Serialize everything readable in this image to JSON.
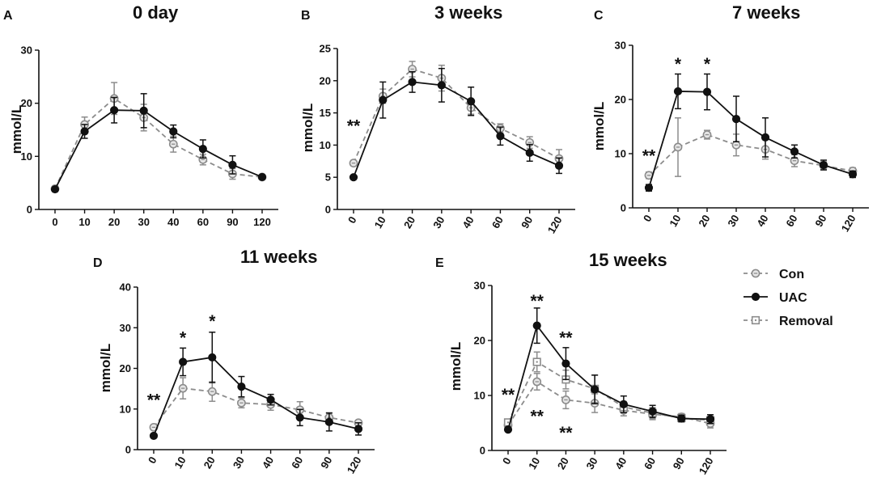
{
  "legend": [
    {
      "label": "Con",
      "color": "#8c8c8c",
      "marker": "circle-open",
      "dash": "dashed"
    },
    {
      "label": "UAC",
      "color": "#111111",
      "marker": "circle-filled",
      "dash": "solid"
    },
    {
      "label": "Removal",
      "color": "#8c8c8c",
      "marker": "square-open",
      "dash": "dashed"
    }
  ],
  "chart_data": [
    {
      "panel": "A",
      "title": "0 day",
      "type": "line",
      "ylabel": "mmol/L",
      "ylim": [
        0,
        30
      ],
      "yticks": [
        0,
        10,
        20,
        30
      ],
      "categories": [
        "0",
        "10",
        "20",
        "30",
        "40",
        "60",
        "90",
        "120"
      ],
      "x_tick_rotation": 0,
      "series": [
        {
          "name": "Con",
          "values": [
            3.9,
            16.0,
            20.9,
            17.3,
            12.3,
            9.4,
            6.7,
            6.1
          ],
          "errors": [
            0.5,
            1.4,
            3.0,
            2.5,
            1.5,
            1.0,
            1.0,
            0.3
          ]
        },
        {
          "name": "UAC",
          "values": [
            3.8,
            14.7,
            18.7,
            18.6,
            14.7,
            11.4,
            8.4,
            6.1
          ],
          "errors": [
            0.4,
            1.3,
            2.4,
            3.2,
            1.2,
            1.7,
            1.7,
            0.3
          ]
        }
      ],
      "annotations": []
    },
    {
      "panel": "B",
      "title": "3 weeks",
      "type": "line",
      "ylabel": "mmol/L",
      "ylim": [
        0,
        25
      ],
      "yticks": [
        0,
        5,
        10,
        15,
        20,
        25
      ],
      "categories": [
        "0",
        "10",
        "20",
        "30",
        "40",
        "60",
        "90",
        "120"
      ],
      "x_tick_rotation": -60,
      "series": [
        {
          "name": "Con",
          "values": [
            7.2,
            17.6,
            21.8,
            20.4,
            15.8,
            12.6,
            10.4,
            7.9
          ],
          "errors": [
            0.4,
            1.1,
            1.2,
            2.0,
            1.0,
            0.7,
            0.9,
            1.4
          ]
        },
        {
          "name": "UAC",
          "values": [
            5.0,
            17.0,
            19.8,
            19.3,
            16.8,
            11.4,
            8.8,
            6.8
          ],
          "errors": [
            0.3,
            2.8,
            1.6,
            2.6,
            2.2,
            1.4,
            1.3,
            1.2
          ]
        }
      ],
      "annotations": [
        {
          "category": "0",
          "y": 12.1,
          "text": "**"
        }
      ]
    },
    {
      "panel": "C",
      "title": "7 weeks",
      "type": "line",
      "ylabel": "mmol/L",
      "ylim": [
        0,
        30
      ],
      "yticks": [
        0,
        10,
        20,
        30
      ],
      "categories": [
        "0",
        "10",
        "20",
        "30",
        "40",
        "60",
        "90",
        "120"
      ],
      "x_tick_rotation": -60,
      "series": [
        {
          "name": "Con",
          "values": [
            6.0,
            11.2,
            13.5,
            11.6,
            10.8,
            8.7,
            7.8,
            6.8
          ],
          "errors": [
            0.6,
            5.4,
            0.8,
            2.0,
            1.8,
            1.1,
            0.7,
            0.6
          ]
        },
        {
          "name": "UAC",
          "values": [
            3.7,
            21.5,
            21.4,
            16.4,
            13.0,
            10.4,
            7.9,
            6.2
          ],
          "errors": [
            0.6,
            3.2,
            3.3,
            4.2,
            3.6,
            1.2,
            0.9,
            0.6
          ]
        }
      ],
      "annotations": [
        {
          "category": "0",
          "y": 8.6,
          "text": "**"
        },
        {
          "category": "10",
          "y": 25.5,
          "text": "*"
        },
        {
          "category": "20",
          "y": 25.5,
          "text": "*"
        }
      ]
    },
    {
      "panel": "D",
      "title": "11 weeks",
      "type": "line",
      "ylabel": "mmol/L",
      "ylim": [
        0,
        40
      ],
      "yticks": [
        0,
        10,
        20,
        30,
        40
      ],
      "categories": [
        "0",
        "10",
        "20",
        "30",
        "40",
        "60",
        "90",
        "120"
      ],
      "x_tick_rotation": -60,
      "series": [
        {
          "name": "Con",
          "values": [
            5.5,
            15.1,
            14.3,
            11.5,
            11.1,
            9.8,
            7.9,
            6.6
          ],
          "errors": [
            0.6,
            2.6,
            2.4,
            1.2,
            1.4,
            2.0,
            1.2,
            0.6
          ]
        },
        {
          "name": "UAC",
          "values": [
            3.4,
            21.6,
            22.7,
            15.5,
            12.3,
            7.9,
            6.8,
            5.1
          ],
          "errors": [
            0.3,
            3.4,
            6.2,
            2.5,
            1.3,
            2.0,
            2.2,
            1.5
          ]
        }
      ],
      "annotations": [
        {
          "category": "0",
          "y": 10.8,
          "text": "**"
        },
        {
          "category": "10",
          "y": 26.2,
          "text": "*"
        },
        {
          "category": "20",
          "y": 30.2,
          "text": "*"
        }
      ]
    },
    {
      "panel": "E",
      "title": "15 weeks",
      "type": "line",
      "ylabel": "mmol/L",
      "ylim": [
        0,
        30
      ],
      "yticks": [
        0,
        10,
        20,
        30
      ],
      "categories": [
        "0",
        "10",
        "20",
        "30",
        "40",
        "60",
        "90",
        "120"
      ],
      "x_tick_rotation": -60,
      "series": [
        {
          "name": "Con",
          "values": [
            4.6,
            12.5,
            9.2,
            8.6,
            7.3,
            6.6,
            6.1,
            4.9
          ],
          "errors": [
            0.6,
            1.5,
            1.6,
            1.7,
            1.0,
            1.0,
            0.6,
            0.8
          ]
        },
        {
          "name": "UAC",
          "values": [
            3.8,
            22.7,
            15.8,
            11.1,
            8.4,
            7.1,
            5.8,
            5.7
          ],
          "errors": [
            0.3,
            3.2,
            2.9,
            2.6,
            1.5,
            1.1,
            0.6,
            0.8
          ]
        },
        {
          "name": "Removal",
          "values": [
            5.1,
            16.1,
            12.9,
            11.2,
            7.9,
            6.8,
            5.9,
            5.5
          ],
          "errors": [
            0.5,
            1.8,
            1.7,
            2.5,
            1.0,
            1.0,
            0.6,
            0.6
          ]
        }
      ],
      "annotations": [
        {
          "category": "0",
          "y": 9.1,
          "text": "**"
        },
        {
          "category": "10",
          "y": 26.2,
          "text": "**"
        },
        {
          "category": "20",
          "y": 19.5,
          "text": "**"
        },
        {
          "category": "10",
          "y": 5.2,
          "text": "**"
        },
        {
          "category": "20",
          "y": 2.2,
          "text": "**"
        }
      ]
    }
  ]
}
